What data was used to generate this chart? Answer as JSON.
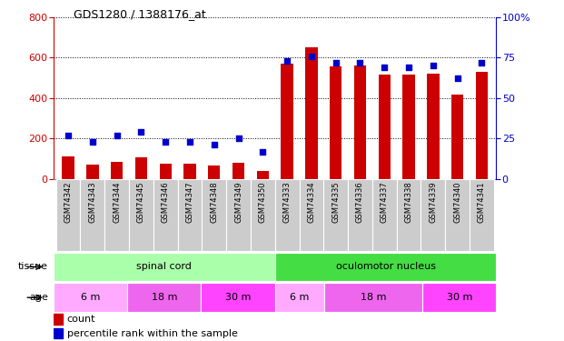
{
  "title": "GDS1280 / 1388176_at",
  "samples": [
    "GSM74342",
    "GSM74343",
    "GSM74344",
    "GSM74345",
    "GSM74346",
    "GSM74347",
    "GSM74348",
    "GSM74349",
    "GSM74350",
    "GSM74333",
    "GSM74334",
    "GSM74335",
    "GSM74336",
    "GSM74337",
    "GSM74338",
    "GSM74339",
    "GSM74340",
    "GSM74341"
  ],
  "counts": [
    110,
    70,
    85,
    105,
    75,
    75,
    65,
    80,
    42,
    570,
    650,
    555,
    560,
    515,
    515,
    520,
    415,
    530
  ],
  "percentiles": [
    27,
    23,
    27,
    29,
    23,
    23,
    21,
    25,
    17,
    73,
    76,
    72,
    72,
    69,
    69,
    70,
    62,
    72
  ],
  "bar_color": "#cc0000",
  "dot_color": "#0000cc",
  "ylim_left": [
    0,
    800
  ],
  "ylim_right": [
    0,
    100
  ],
  "yticks_left": [
    0,
    200,
    400,
    600,
    800
  ],
  "yticks_right": [
    0,
    25,
    50,
    75,
    100
  ],
  "tissue_groups": [
    {
      "label": "spinal cord",
      "start": 0,
      "end": 9,
      "color": "#aaffaa"
    },
    {
      "label": "oculomotor nucleus",
      "start": 9,
      "end": 18,
      "color": "#44dd44"
    }
  ],
  "age_groups": [
    {
      "label": "6 m",
      "start": 0,
      "end": 3,
      "color": "#ffaaff"
    },
    {
      "label": "18 m",
      "start": 3,
      "end": 6,
      "color": "#ee66ee"
    },
    {
      "label": "30 m",
      "start": 6,
      "end": 9,
      "color": "#ff44ff"
    },
    {
      "label": "6 m",
      "start": 9,
      "end": 11,
      "color": "#ffaaff"
    },
    {
      "label": "18 m",
      "start": 11,
      "end": 15,
      "color": "#ee66ee"
    },
    {
      "label": "30 m",
      "start": 15,
      "end": 18,
      "color": "#ff44ff"
    }
  ],
  "legend_items": [
    {
      "label": "count",
      "color": "#cc0000"
    },
    {
      "label": "percentile rank within the sample",
      "color": "#0000cc"
    }
  ]
}
